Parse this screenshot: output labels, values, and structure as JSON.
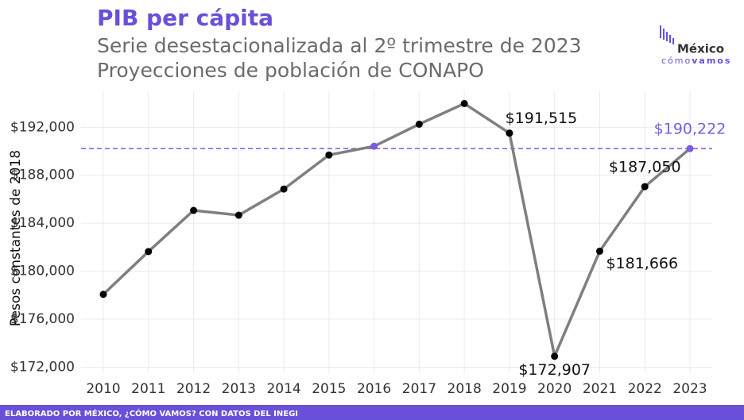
{
  "chart_data": {
    "type": "line",
    "title": "PIB per cápita",
    "subtitle": [
      "Serie desestacionalizada al 2º trimestre de 2023",
      "Proyecciones de población de CONAPO"
    ],
    "y_label": "Pesos constantes de 2018",
    "logo": {
      "top": "México",
      "bottom_left": "cómo",
      "bottom_right": "vamos"
    },
    "footer": "ELABORADO POR MÉXICO, ¿CÓMO VAMOS? CON DATOS DEL INEGI",
    "categories": [
      "2010",
      "2011",
      "2012",
      "2013",
      "2014",
      "2015",
      "2016",
      "2017",
      "2018",
      "2019",
      "2020",
      "2021",
      "2022",
      "2023"
    ],
    "values": [
      178070,
      181640,
      185070,
      184670,
      186850,
      189690,
      190420,
      192260,
      193980,
      191515,
      172907,
      181666,
      187050,
      190222
    ],
    "value_labels": [
      null,
      null,
      null,
      null,
      null,
      null,
      null,
      null,
      null,
      "$191,515",
      "$172,907",
      "$181,666",
      "$187,050",
      "$190,222"
    ],
    "color": "#7f7f7f",
    "point_colors": [
      "#000000",
      "#000000",
      "#000000",
      "#000000",
      "#000000",
      "#000000",
      "#7b5ce0",
      "#000000",
      "#000000",
      "#000000",
      "#000000",
      "#000000",
      "#000000",
      "#7b5ce0"
    ],
    "reference_line_color": "#7b5ce0",
    "ylim": [
      171500,
      195000
    ],
    "yticks": [
      {
        "value": 172000,
        "label": "$172,000"
      },
      {
        "value": 176000,
        "label": "$176,000"
      },
      {
        "value": 180000,
        "label": "$180,000"
      },
      {
        "value": 184000,
        "label": "$184,000"
      },
      {
        "value": 188000,
        "label": "$188,000"
      },
      {
        "value": 192000,
        "label": "$192,000"
      }
    ],
    "grid": true
  }
}
